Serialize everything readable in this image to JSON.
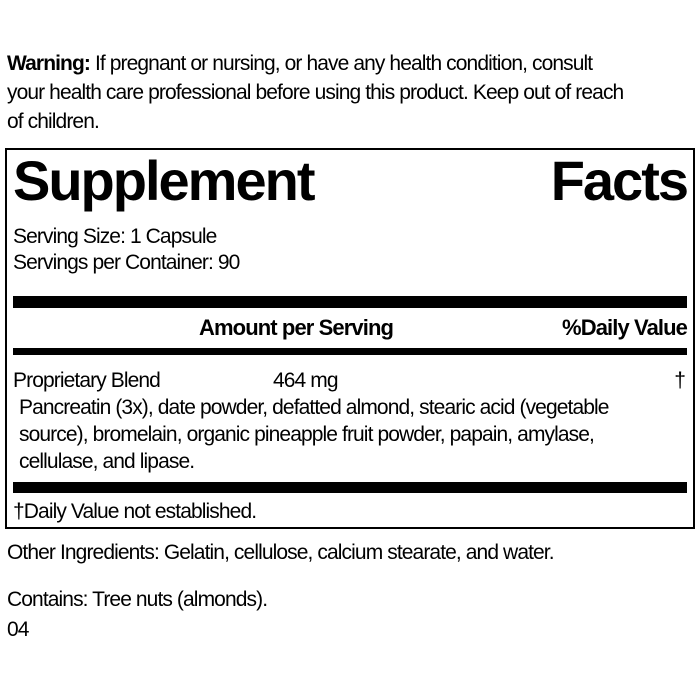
{
  "colors": {
    "text": "#000000",
    "background": "#ffffff",
    "divider_bar": "#000000"
  },
  "warning": {
    "label": "Warning:",
    "line1": "If pregnant or nursing, or have any health condition, consult",
    "line2": "your health care professional before using this product. Keep out of reach",
    "line3": "of children."
  },
  "supplement_facts": {
    "title": {
      "left": "Supplement",
      "right": "Facts"
    },
    "serving_size": "Serving Size: 1 Capsule",
    "servings_per_container": "Servings per Container: 90",
    "columns": {
      "amount": "Amount per Serving",
      "daily_value": "%Daily Value"
    },
    "blend": {
      "name": "Proprietary Blend",
      "amount": "464 mg",
      "daily_value": "†",
      "description_lines": [
        "Pancreatin (3x), date powder, defatted almond, stearic acid (vegetable",
        "source), bromelain, organic pineapple fruit powder, papain, amylase,",
        "cellulase, and lipase."
      ]
    },
    "footnote": "†Daily Value not established."
  },
  "other_ingredients": "Other Ingredients: Gelatin, cellulose, calcium stearate, and water.",
  "contains": "Contains: Tree nuts (almonds).",
  "code": "04"
}
